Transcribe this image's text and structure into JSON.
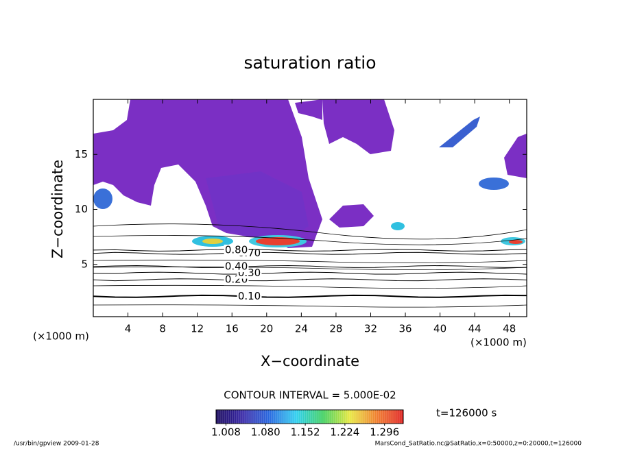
{
  "chart_data": {
    "type": "contour",
    "title": "saturation ratio",
    "x_label": "X−coordinate",
    "y_label": "Z−coordinate",
    "x_unit": "(×1000 m)",
    "y_unit": "(×1000 m)",
    "xlim": [
      0,
      50
    ],
    "ylim": [
      0.25,
      20
    ],
    "xticks": [
      4,
      8,
      12,
      16,
      20,
      24,
      28,
      32,
      36,
      40,
      44,
      48
    ],
    "yticks": [
      5,
      10,
      15
    ],
    "contours": [
      {
        "level": 0.1,
        "label": "0.10",
        "z": 2.1
      },
      {
        "level": 0.2,
        "label": "0.20",
        "z": 3.6
      },
      {
        "level": 0.3,
        "label": "0.30",
        "z": 4.2
      },
      {
        "level": 0.4,
        "label": "0.40",
        "z": 4.8
      },
      {
        "level": 0.7,
        "label": "0.70",
        "z": 6.0
      },
      {
        "level": 0.8,
        "label": "0.80",
        "z": 6.3
      }
    ],
    "contour_interval": "CONTOUR INTERVAL = 5.000E-02",
    "time_label": "t=126000 s",
    "colorbar": {
      "clim": [
        0.99,
        1.33
      ],
      "colors": [
        "#1a0a5e",
        "#3a2aa8",
        "#2a6ae0",
        "#30d0f0",
        "#40d060",
        "#e8e840",
        "#f08030",
        "#e02020"
      ],
      "ticks": [
        1.008,
        {
          "value": 1.08,
          "label": "1.080"
        },
        1.152,
        1.224,
        1.296
      ]
    },
    "footer_left": "/usr/bin/gpview  2009-01-28",
    "footer_right": "MarsCond_SatRatio.nc@SatRatio,x=0:50000,z=0:20000,t=126000"
  }
}
